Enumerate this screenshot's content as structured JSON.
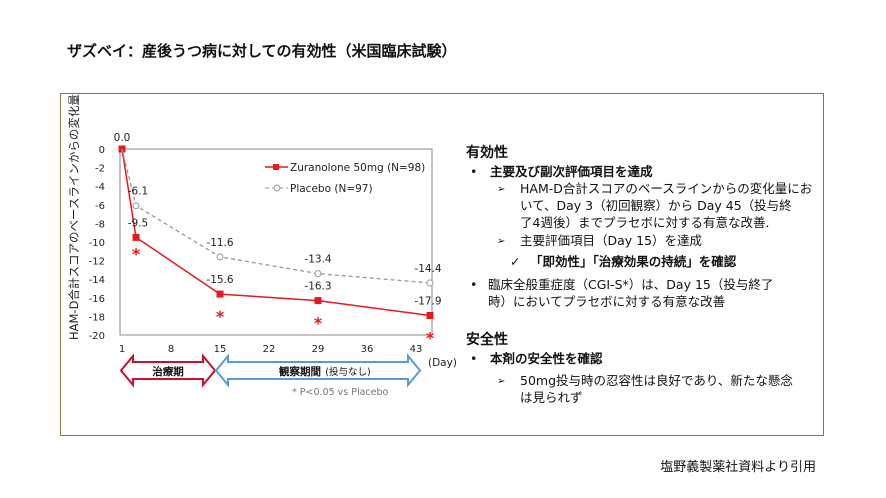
{
  "title": "ザズベイ：産後うつ病に対しての有効性（米国臨床試験）",
  "source": "塩野義製薬社資料より引用",
  "chart_data": {
    "type": "line",
    "ylabel": "HAM-D合計スコアのベースラインからの変化量",
    "xlabel": "(Day)",
    "xticks": [
      1,
      8,
      15,
      22,
      29,
      36,
      43
    ],
    "yticks": [
      0,
      -2,
      -4,
      -6,
      -8,
      -10,
      -12,
      -14,
      -16,
      -18,
      -20
    ],
    "ylim": [
      -20,
      0
    ],
    "xlim": [
      1,
      45
    ],
    "series": [
      {
        "name": "Zuranolone 50mg (N=98)",
        "color": "#e8191e",
        "style": "solid-square",
        "x": [
          1,
          3,
          15,
          29,
          45
        ],
        "values": [
          0.0,
          -9.5,
          -15.6,
          -16.3,
          -17.9
        ],
        "labels": [
          "0.0",
          "-9.5",
          "-15.6",
          "-16.3",
          "-17.9"
        ],
        "significant": [
          false,
          true,
          true,
          true,
          true
        ]
      },
      {
        "name": "Placebo (N=97)",
        "color": "#999999",
        "style": "dashed-circle",
        "x": [
          1,
          3,
          15,
          29,
          45
        ],
        "values": [
          0.0,
          -6.1,
          -11.6,
          -13.4,
          -14.4
        ],
        "labels": [
          "",
          "-6.1",
          "-11.6",
          "-13.4",
          "-14.4"
        ]
      }
    ],
    "periods": [
      {
        "label": "治療期",
        "color": "#c8102e"
      },
      {
        "label": "観察期間",
        "sub": "(投与なし)",
        "color": "#5b9bd5"
      }
    ],
    "footnote": "* P<0.05 vs Placebo",
    "star": "*"
  },
  "efficacy": {
    "heading": "有効性",
    "b1": "主要及び副次評価項目を達成",
    "s1a": "HAM-D合計スコアのベースラインからの変化量にお",
    "s1b": "いて、Day 3（初回観察）から Day 45（投与終",
    "s1c": "了4週後）までプラセボに対する有意な改善.",
    "s2": "主要評価項目（Day 15）を達成",
    "check": "「即効性」「治療効果の持続」を確認",
    "b2a": "臨床全般重症度（CGI-S*）は、Day 15（投与終了",
    "b2b": "時）においてプラセボに対する有意な改善"
  },
  "safety": {
    "heading": "安全性",
    "b1": "本剤の安全性を確認",
    "s1a": "50mg投与時の忍容性は良好であり、新たな懸念",
    "s1b": "は見られず"
  },
  "glyphs": {
    "bullet": "•",
    "arrow": "➢",
    "check": "✓"
  }
}
